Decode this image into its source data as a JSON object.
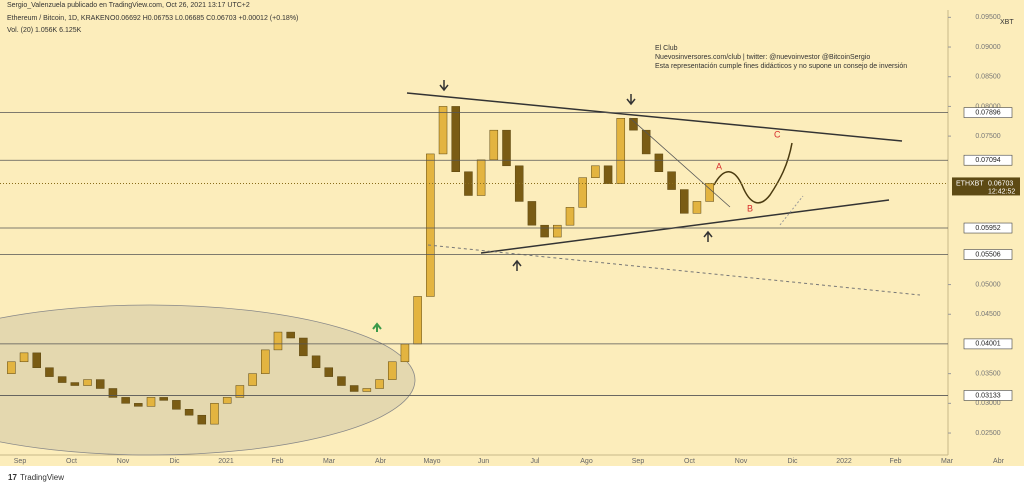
{
  "header": "Sergio_Valenzuela publicado en TradingView.com, Oct 26, 2021 13:17 UTC+2",
  "footer": "TradingView",
  "chart_data": {
    "type": "candlestick",
    "title": "Ethereum / Bitcoin, 1D, KRAKEN",
    "ohlc_text": "O0.06692 H0.06753 L0.06685 C0.06703 +0.00012 (+0.18%)",
    "volume_text": "Vol. (20) 1.056K 6.125K",
    "annotation": [
      "El Club",
      "Nuevosinversores.com/club | twitter: @nuevoinvestor @BitcoinSergio",
      "Esta representación cumple fines didácticos y no supone un consejo de inversión"
    ],
    "wave_labels": [
      "A",
      "B",
      "C"
    ],
    "currency": "XBT",
    "symbol_tag": "ETHXBT",
    "countdown": "12:42:52",
    "last_price": 0.06703,
    "open": [
      0.035,
      0.037,
      0.0385,
      0.036,
      0.0345,
      0.0335,
      0.033,
      0.034,
      0.0325,
      0.031,
      0.03,
      0.0295,
      0.031,
      0.0305,
      0.029,
      0.028,
      0.0265,
      0.03,
      0.031,
      0.033,
      0.035,
      0.039,
      0.042,
      0.041,
      0.038,
      0.036,
      0.0345,
      0.033,
      0.032,
      0.0325,
      0.034,
      0.037,
      0.04,
      0.048,
      0.072,
      0.08,
      0.069,
      0.065,
      0.071,
      0.076,
      0.07,
      0.064,
      0.06,
      0.058,
      0.06,
      0.063,
      0.068,
      0.07,
      0.067,
      0.078,
      0.076,
      0.072,
      0.069,
      0.066,
      0.062,
      0.064
    ],
    "close": [
      0.037,
      0.0385,
      0.036,
      0.0345,
      0.0335,
      0.033,
      0.034,
      0.0325,
      0.031,
      0.03,
      0.0295,
      0.031,
      0.0305,
      0.029,
      0.028,
      0.0265,
      0.03,
      0.031,
      0.033,
      0.035,
      0.039,
      0.042,
      0.041,
      0.038,
      0.036,
      0.0345,
      0.033,
      0.032,
      0.0325,
      0.034,
      0.037,
      0.04,
      0.048,
      0.072,
      0.08,
      0.069,
      0.065,
      0.071,
      0.076,
      0.07,
      0.064,
      0.06,
      0.058,
      0.06,
      0.063,
      0.068,
      0.07,
      0.067,
      0.078,
      0.076,
      0.072,
      0.069,
      0.066,
      0.062,
      0.064,
      0.06703
    ],
    "up_color": "#e3b440",
    "down_color": "#7a5c14",
    "levels": [
      0.07896,
      0.07094,
      0.05952,
      0.05506,
      0.04001,
      0.03133
    ],
    "ylim": [
      0.0213,
      0.0959
    ],
    "yticks": [
      {
        "value": 0.025,
        "label": "0.02500"
      },
      {
        "value": 0.03,
        "label": "0.03000"
      },
      {
        "value": 0.035,
        "label": "0.03500"
      },
      {
        "value": 0.045,
        "label": "0.04500"
      },
      {
        "value": 0.05,
        "label": "0.05000"
      },
      {
        "value": 0.075,
        "label": "0.07500"
      },
      {
        "value": 0.08,
        "label": "0.08000"
      },
      {
        "value": 0.085,
        "label": "0.08500"
      },
      {
        "value": 0.09,
        "label": "0.09000"
      },
      {
        "value": 0.095,
        "label": "0.09500"
      }
    ],
    "xaxis_labels": [
      "Sep",
      "Oct",
      "Nov",
      "Dic",
      "2021",
      "Feb",
      "Mar",
      "Abr",
      "Mayo",
      "Jun",
      "Jul",
      "Ago",
      "Sep",
      "Oct",
      "Nov",
      "Dic",
      "2022",
      "Feb",
      "Mar",
      "Abr"
    ]
  }
}
